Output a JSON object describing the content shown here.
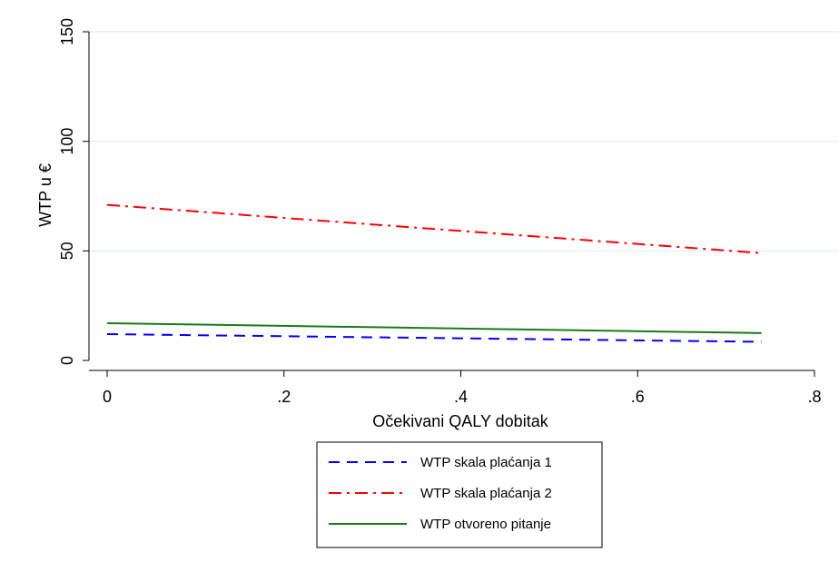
{
  "chart_data": {
    "type": "line",
    "title": "",
    "xlabel": "Očekivani QALY dobitak",
    "ylabel": "WTP u €",
    "xlim": [
      0,
      0.8
    ],
    "ylim": [
      0,
      150
    ],
    "x_ticks": [
      {
        "value": 0,
        "label": "0"
      },
      {
        "value": 0.2,
        "label": ".2"
      },
      {
        "value": 0.4,
        "label": ".4"
      },
      {
        "value": 0.6,
        "label": ".6"
      },
      {
        "value": 0.8,
        "label": ".8"
      }
    ],
    "y_ticks": [
      {
        "value": 0,
        "label": "0"
      },
      {
        "value": 50,
        "label": "50"
      },
      {
        "value": 100,
        "label": "100"
      },
      {
        "value": 150,
        "label": "150"
      }
    ],
    "grid": true,
    "legend_position": "bottom",
    "series": [
      {
        "name": "WTP skala plaćanja 1",
        "color": "#0000ff",
        "dash": "dash",
        "x": [
          0.0,
          0.74
        ],
        "y": [
          12,
          8.5
        ]
      },
      {
        "name": "WTP skala plaćanja 2",
        "color": "#ff0000",
        "dash": "dashdot",
        "x": [
          0.0,
          0.74
        ],
        "y": [
          71,
          49
        ]
      },
      {
        "name": "WTP otvoreno pitanje",
        "color": "#1a7a1a",
        "dash": "solid",
        "x": [
          0.0,
          0.74
        ],
        "y": [
          17,
          12.5
        ]
      }
    ]
  }
}
